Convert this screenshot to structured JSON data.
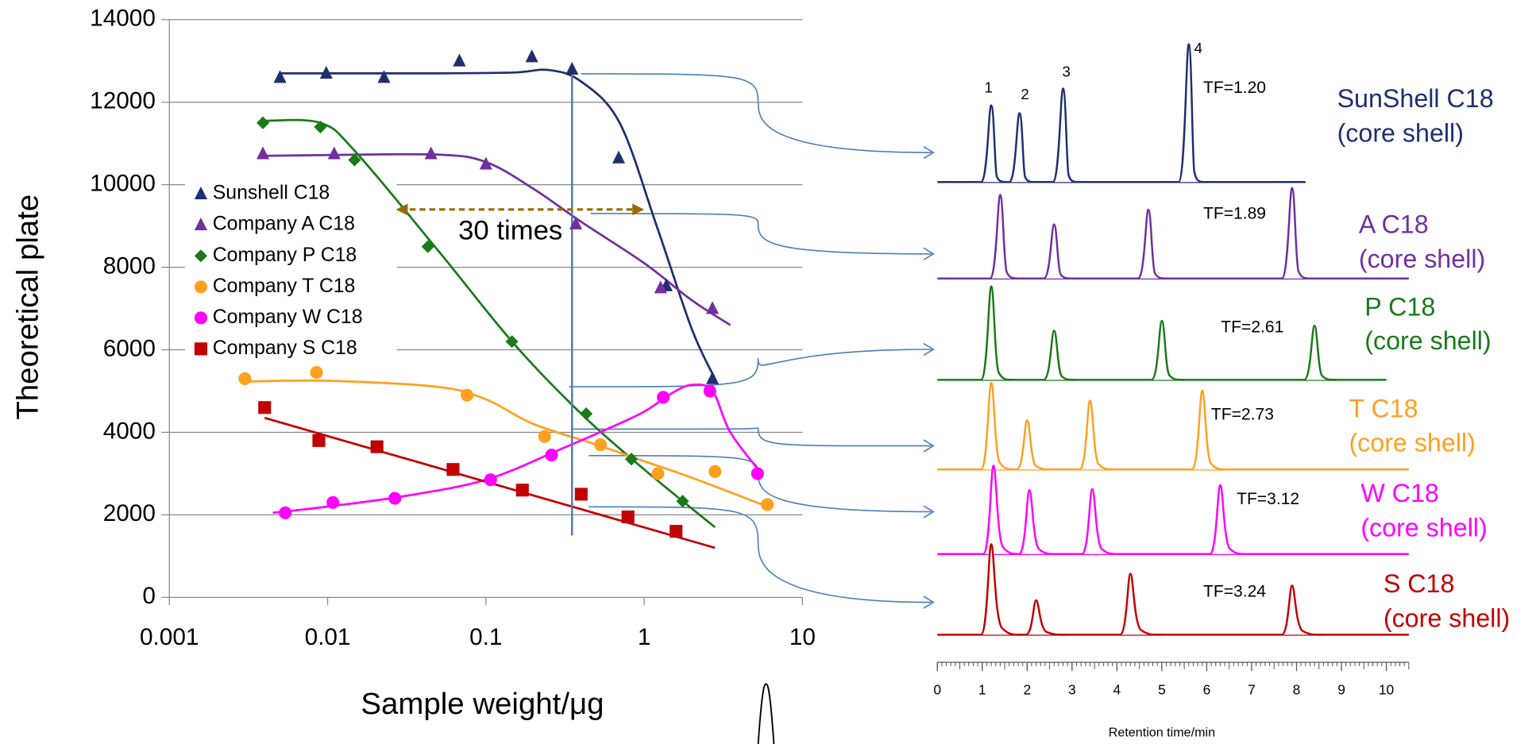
{
  "chart_data": [
    {
      "type": "scatter",
      "xlabel": "Sample weight/μg",
      "ylabel": "Theoretical plate",
      "log_x": true,
      "grid": true,
      "legend": "left",
      "xlim": [
        0.001,
        10
      ],
      "xticks": [
        0.001,
        0.01,
        0.1,
        1,
        10
      ],
      "ylim": [
        0,
        14000
      ],
      "yticks": [
        0,
        2000,
        4000,
        6000,
        8000,
        10000,
        12000,
        14000
      ],
      "series": [
        {
          "name": "Sunshell C18",
          "color": "#1f2f6e",
          "marker": "triangle",
          "x": [
            0.005,
            0.0098,
            0.0227,
            0.068,
            0.195,
            0.35,
            0.69,
            1.38,
            2.7
          ],
          "values": [
            12600,
            12700,
            12600,
            13000,
            13100,
            12800,
            10650,
            7550,
            5300
          ],
          "fit_x": [
            0.005,
            0.01,
            0.05,
            0.15,
            0.25,
            0.4,
            0.7,
            1.2,
            2,
            2.8
          ],
          "fit": [
            12700,
            12700,
            12700,
            12720,
            12780,
            12500,
            11500,
            9000,
            6500,
            5300
          ]
        },
        {
          "name": "Company A C18",
          "color": "#7030a0",
          "marker": "triangle",
          "x": [
            0.0039,
            0.011,
            0.045,
            0.1,
            0.37,
            1.27,
            2.7
          ],
          "values": [
            10750,
            10750,
            10750,
            10500,
            9050,
            7500,
            7000
          ],
          "fit_x": [
            0.004,
            0.01,
            0.05,
            0.1,
            0.2,
            0.4,
            1,
            2,
            3.5
          ],
          "fit": [
            10700,
            10720,
            10730,
            10550,
            9900,
            9100,
            8100,
            7200,
            6600
          ]
        },
        {
          "name": "Company P C18",
          "color": "#1a7a1a",
          "marker": "diamond",
          "x": [
            0.0039,
            0.009,
            0.0148,
            0.043,
            0.146,
            0.43,
            0.83,
            1.75
          ],
          "values": [
            11500,
            11400,
            10600,
            8500,
            6200,
            4450,
            3350,
            2330
          ],
          "fit_x": [
            0.004,
            0.009,
            0.015,
            0.05,
            0.15,
            0.4,
            1,
            2.8
          ],
          "fit": [
            11550,
            11500,
            10800,
            8400,
            6150,
            4450,
            3100,
            1700
          ]
        },
        {
          "name": "Company T C18",
          "color": "#ffa020",
          "marker": "circle",
          "x": [
            0.003,
            0.0085,
            0.076,
            0.235,
            0.53,
            1.22,
            2.8,
            6
          ],
          "values": [
            5300,
            5450,
            4900,
            3900,
            3700,
            3000,
            3050,
            2250
          ],
          "fit_x": [
            0.003,
            0.01,
            0.05,
            0.1,
            0.2,
            0.5,
            1,
            2,
            6
          ],
          "fit": [
            5230,
            5250,
            5100,
            4800,
            4200,
            3700,
            3300,
            2900,
            2200
          ]
        },
        {
          "name": "Company W C18",
          "color": "#ff00ff",
          "marker": "circle",
          "x": [
            0.0054,
            0.0108,
            0.0266,
            0.107,
            0.26,
            1.32,
            2.6,
            5.2
          ],
          "values": [
            2050,
            2300,
            2400,
            2850,
            3450,
            4850,
            5000,
            3000
          ],
          "fit_x": [
            0.0045,
            0.01,
            0.03,
            0.1,
            0.3,
            0.6,
            1,
            1.5,
            2,
            2.7,
            3.5,
            5.5
          ],
          "fit": [
            2050,
            2200,
            2450,
            2850,
            3600,
            4100,
            4500,
            4950,
            5150,
            5000,
            4000,
            3000
          ]
        },
        {
          "name": "Company S C18",
          "color": "#c00000",
          "marker": "square",
          "x": [
            0.004,
            0.0088,
            0.0205,
            0.062,
            0.17,
            0.4,
            0.79,
            1.59
          ],
          "values": [
            4600,
            3800,
            3650,
            3100,
            2600,
            2500,
            1950,
            1600
          ],
          "fit_x": [
            0.004,
            2.8
          ],
          "fit": [
            4350,
            1200
          ]
        }
      ],
      "annotations": [
        {
          "text": "30 times",
          "x": 0.067,
          "y": 8850
        }
      ],
      "range_arrow": {
        "x": [
          0.027,
          1
        ],
        "y": 9400,
        "color": "#9c6a00"
      },
      "marker_line": {
        "x": 0.35,
        "y": [
          12900,
          1500
        ],
        "color": "#4a7ebb"
      }
    },
    {
      "type": "chromatogram",
      "xlabel": "Retention time/min",
      "xlim": [
        0,
        10.5
      ],
      "xticks": [
        0,
        1,
        2,
        3,
        4,
        5,
        6,
        7,
        8,
        9,
        10
      ],
      "peak_numbers": [
        "1",
        "2",
        "3",
        "4"
      ],
      "traces": [
        {
          "name": [
            "SunShell C18",
            "(core shell)"
          ],
          "color": "#1f2f6e",
          "tf": "TF=1.20",
          "end": 8.2,
          "times": [
            1.2,
            1.83,
            2.8,
            5.6
          ],
          "heights": [
            78,
            70,
            95,
            140
          ]
        },
        {
          "name": [
            "A C18",
            "(core shell)"
          ],
          "color": "#7030a0",
          "tf": "TF=1.89",
          "end": 10.5,
          "times": [
            1.4,
            2.6,
            4.7,
            7.9
          ],
          "heights": [
            85,
            55,
            70,
            92
          ]
        },
        {
          "name": [
            "P C18",
            "(core shell)"
          ],
          "color": "#1a7a1a",
          "tf": "TF=2.61",
          "end": 10,
          "times": [
            1.2,
            2.6,
            5,
            8.4
          ],
          "heights": [
            95,
            50,
            60,
            55
          ]
        },
        {
          "name": [
            "T C18",
            "(core shell)"
          ],
          "color": "#ffa020",
          "tf": "TF=2.73",
          "end": 10.5,
          "times": [
            1.2,
            2,
            3.4,
            5.9
          ],
          "heights": [
            88,
            50,
            70,
            80
          ]
        },
        {
          "name": [
            "W C18",
            "(core shell)"
          ],
          "color": "#ff00ff",
          "tf": "TF=3.12",
          "end": 10.5,
          "times": [
            1.25,
            2.05,
            3.45,
            6.3
          ],
          "heights": [
            90,
            65,
            66,
            70
          ]
        },
        {
          "name": [
            "S C18",
            "(core shell)"
          ],
          "color": "#c00000",
          "tf": "TF=3.24",
          "end": 10.5,
          "times": [
            1.2,
            2.2,
            4.3,
            7.9
          ],
          "heights": [
            92,
            35,
            62,
            50
          ]
        }
      ]
    }
  ]
}
